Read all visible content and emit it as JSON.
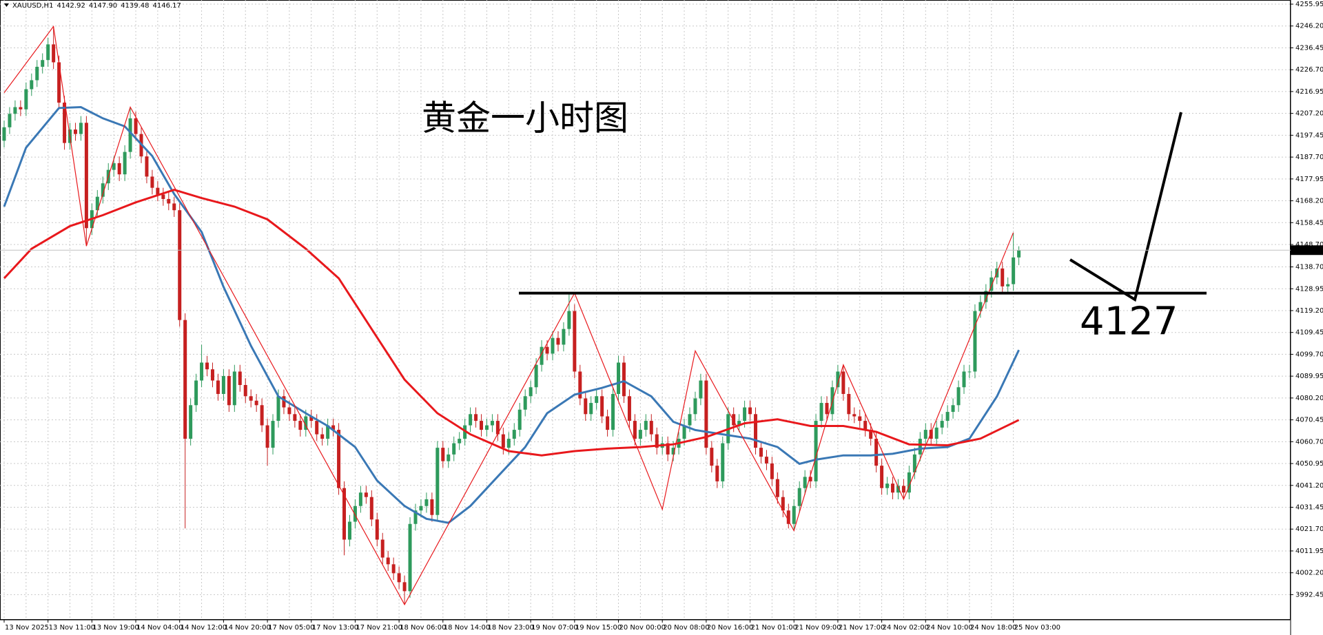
{
  "chart_data": {
    "type": "candlestick",
    "symbol": "XAUUSD,H1",
    "ohlc_labels": [
      "4142.92",
      "4147.90",
      "4139.48",
      "4146.17"
    ],
    "title": "黄金一小时图",
    "categories": [
      "13 Nov 2025",
      null,
      null,
      null,
      null,
      null,
      null,
      null,
      "13 Nov 11:00",
      null,
      null,
      null,
      null,
      null,
      null,
      null,
      "13 Nov 19:00",
      null,
      null,
      null,
      null,
      null,
      null,
      null,
      "14 Nov 04:00",
      null,
      null,
      null,
      null,
      null,
      null,
      null,
      "14 Nov 12:00",
      null,
      null,
      null,
      null,
      null,
      null,
      null,
      "14 Nov 20:00",
      null,
      null,
      null,
      null,
      null,
      null,
      null,
      "17 Nov 05:00",
      null,
      null,
      null,
      null,
      null,
      null,
      null,
      "17 Nov 13:00",
      null,
      null,
      null,
      null,
      null,
      null,
      null,
      "17 Nov 21:00",
      null,
      null,
      null,
      null,
      null,
      null,
      null,
      "18 Nov 06:00",
      null,
      null,
      null,
      null,
      null,
      null,
      null,
      "18 Nov 14:00",
      null,
      null,
      null,
      null,
      null,
      null,
      null,
      "18 Nov 23:00",
      null,
      null,
      null,
      null,
      null,
      null,
      null,
      "19 Nov 07:00",
      null,
      null,
      null,
      null,
      null,
      null,
      null,
      "19 Nov 15:00",
      null,
      null,
      null,
      null,
      null,
      null,
      null,
      "20 Nov 00:00",
      null,
      null,
      null,
      null,
      null,
      null,
      null,
      "20 Nov 08:00",
      null,
      null,
      null,
      null,
      null,
      null,
      null,
      "20 Nov 16:00",
      null,
      null,
      null,
      null,
      null,
      null,
      null,
      "21 Nov 01:00",
      null,
      null,
      null,
      null,
      null,
      null,
      null,
      "21 Nov 09:00",
      null,
      null,
      null,
      null,
      null,
      null,
      null,
      "21 Nov 17:00",
      null,
      null,
      null,
      null,
      null,
      null,
      null,
      "24 Nov 02:00",
      null,
      null,
      null,
      null,
      null,
      null,
      null,
      "24 Nov 10:00",
      null,
      null,
      null,
      null,
      null,
      null,
      null,
      "24 Nov 18:00",
      null,
      null,
      null,
      null,
      null,
      null,
      null,
      "25 Nov 03:00",
      null
    ],
    "open": [
      4195,
      4201,
      4207,
      4210,
      4209,
      4218,
      4222,
      4228,
      4231,
      4238,
      4230,
      4212,
      4194,
      4200,
      4198,
      4203,
      4156,
      4164,
      4170,
      4176,
      4182,
      4185,
      4180,
      4190,
      4205,
      4198,
      4188,
      4179,
      4174,
      4171,
      4169,
      4167,
      4164,
      4115,
      4062,
      4077,
      4088,
      4096,
      4093,
      4088,
      4082,
      4090,
      4077,
      4092,
      4086,
      4081,
      4079,
      4077,
      4068,
      4058,
      4070,
      4081,
      4076,
      4073,
      4070,
      4066,
      4072,
      4070,
      4064,
      4062,
      4068,
      4066,
      4040,
      4017,
      4025,
      4032,
      4038,
      4036,
      4026,
      4017,
      4009,
      4006,
      4002,
      3998,
      3994,
      4024,
      4030,
      4032,
      4035,
      4028,
      4058,
      4052,
      4055,
      4060,
      4062,
      4068,
      4073,
      4070,
      4066,
      4068,
      4070,
      4064,
      4058,
      4062,
      4066,
      4075,
      4081,
      4085,
      4095,
      4103,
      4100,
      4107,
      4104,
      4111,
      4119,
      4092,
      4080,
      4073,
      4078,
      4081,
      4072,
      4066,
      4082,
      4096,
      4081,
      4070,
      4062,
      4066,
      4070,
      4064,
      4058,
      4060,
      4055,
      4058,
      4062,
      4068,
      4073,
      4080,
      4088,
      4058,
      4050,
      4043,
      4060,
      4073,
      4068,
      4070,
      4076,
      4073,
      4058,
      4054,
      4051,
      4044,
      4036,
      4030,
      4024,
      4032,
      4040,
      4045,
      4043,
      4070,
      4078,
      4073,
      4085,
      4092,
      4082,
      4073,
      4072,
      4070,
      4066,
      4062,
      4050,
      4040,
      4042,
      4038,
      4041,
      4038,
      4047,
      4055,
      4062,
      4066,
      4062,
      4067,
      4070,
      4074,
      4077,
      4085,
      4092,
      4092,
      4119,
      4123,
      4128,
      4134,
      4138,
      4130,
      4131,
      4142.92
    ],
    "high": [
      4204,
      4210,
      4213,
      4213,
      4221,
      4225,
      4231,
      4234,
      4241,
      4246,
      4233,
      4215,
      4203,
      4203,
      4206,
      4206,
      4167,
      4173,
      4179,
      4185,
      4188,
      4188,
      4193,
      4210,
      4208,
      4201,
      4191,
      4182,
      4177,
      4174,
      4172,
      4170,
      4167,
      4118,
      4080,
      4091,
      4104,
      4099,
      4096,
      4091,
      4093,
      4093,
      4095,
      4095,
      4089,
      4084,
      4082,
      4080,
      4071,
      4073,
      4084,
      4084,
      4079,
      4076,
      4073,
      4075,
      4075,
      4073,
      4067,
      4071,
      4071,
      4069,
      4043,
      4028,
      4035,
      4041,
      4041,
      4039,
      4029,
      4020,
      4012,
      4009,
      4005,
      4001,
      4027,
      4033,
      4035,
      4038,
      4038,
      4061,
      4061,
      4058,
      4063,
      4065,
      4071,
      4076,
      4076,
      4073,
      4071,
      4073,
      4073,
      4067,
      4065,
      4069,
      4078,
      4084,
      4088,
      4098,
      4106,
      4106,
      4110,
      4110,
      4114,
      4127,
      4122,
      4095,
      4083,
      4081,
      4084,
      4084,
      4075,
      4085,
      4099,
      4099,
      4084,
      4073,
      4069,
      4073,
      4073,
      4067,
      4063,
      4063,
      4061,
      4065,
      4071,
      4076,
      4083,
      4091,
      4091,
      4061,
      4053,
      4063,
      4076,
      4076,
      4073,
      4079,
      4079,
      4076,
      4061,
      4057,
      4054,
      4047,
      4039,
      4033,
      4035,
      4043,
      4048,
      4048,
      4073,
      4081,
      4081,
      4088,
      4095,
      4095,
      4085,
      4076,
      4075,
      4073,
      4069,
      4065,
      4053,
      4045,
      4045,
      4044,
      4044,
      4050,
      4058,
      4065,
      4069,
      4069,
      4070,
      4073,
      4077,
      4080,
      4088,
      4095,
      4095,
      4122,
      4126,
      4131,
      4137,
      4141,
      4141,
      4134,
      4154,
      4147.9
    ],
    "low": [
      4192,
      4198,
      4204,
      4206,
      4206,
      4215,
      4219,
      4225,
      4228,
      4227,
      4209,
      4191,
      4191,
      4195,
      4195,
      4148,
      4153,
      4161,
      4167,
      4173,
      4179,
      4177,
      4177,
      4187,
      4195,
      4185,
      4176,
      4171,
      4168,
      4166,
      4164,
      4161,
      4112,
      4022,
      4059,
      4074,
      4085,
      4090,
      4085,
      4079,
      4079,
      4074,
      4074,
      4083,
      4078,
      4076,
      4074,
      4065,
      4050,
      4055,
      4067,
      4073,
      4070,
      4067,
      4063,
      4063,
      4067,
      4061,
      4059,
      4059,
      4063,
      4037,
      4010,
      4014,
      4022,
      4029,
      4033,
      4023,
      4014,
      4006,
      4003,
      3999,
      3995,
      3988,
      3991,
      4021,
      4027,
      4029,
      4025,
      4025,
      4049,
      4049,
      4052,
      4057,
      4059,
      4065,
      4067,
      4063,
      4063,
      4065,
      4061,
      4055,
      4055,
      4059,
      4063,
      4072,
      4078,
      4082,
      4092,
      4097,
      4097,
      4101,
      4101,
      4108,
      4089,
      4077,
      4070,
      4070,
      4075,
      4069,
      4063,
      4063,
      4079,
      4078,
      4067,
      4059,
      4059,
      4063,
      4061,
      4055,
      4055,
      4052,
      4052,
      4055,
      4059,
      4065,
      4070,
      4077,
      4055,
      4047,
      4040,
      4040,
      4057,
      4065,
      4065,
      4067,
      4070,
      4055,
      4051,
      4048,
      4041,
      4033,
      4027,
      4022,
      4021,
      4029,
      4037,
      4040,
      4040,
      4067,
      4070,
      4070,
      4082,
      4079,
      4070,
      4069,
      4067,
      4063,
      4059,
      4047,
      4037,
      4037,
      4035,
      4035,
      4035,
      4035,
      4044,
      4052,
      4059,
      4059,
      4059,
      4064,
      4067,
      4071,
      4074,
      4082,
      4089,
      4089,
      4116,
      4120,
      4125,
      4131,
      4127,
      4127,
      4128,
      4139.48
    ],
    "close": [
      4201,
      4207,
      4210,
      4209,
      4218,
      4222,
      4228,
      4231,
      4238,
      4230,
      4212,
      4194,
      4200,
      4198,
      4203,
      4156,
      4164,
      4170,
      4176,
      4182,
      4185,
      4180,
      4190,
      4205,
      4198,
      4188,
      4179,
      4174,
      4171,
      4169,
      4167,
      4164,
      4115,
      4062,
      4077,
      4088,
      4096,
      4093,
      4088,
      4082,
      4090,
      4077,
      4092,
      4086,
      4081,
      4079,
      4077,
      4068,
      4058,
      4070,
      4081,
      4076,
      4073,
      4070,
      4066,
      4072,
      4070,
      4064,
      4062,
      4068,
      4066,
      4040,
      4017,
      4025,
      4032,
      4038,
      4036,
      4026,
      4017,
      4009,
      4006,
      4002,
      3998,
      3994,
      4024,
      4030,
      4032,
      4035,
      4028,
      4058,
      4052,
      4055,
      4060,
      4062,
      4068,
      4073,
      4070,
      4066,
      4068,
      4070,
      4064,
      4058,
      4062,
      4066,
      4075,
      4081,
      4085,
      4095,
      4103,
      4100,
      4107,
      4104,
      4111,
      4119,
      4092,
      4080,
      4073,
      4078,
      4081,
      4072,
      4066,
      4082,
      4096,
      4081,
      4070,
      4062,
      4066,
      4070,
      4064,
      4058,
      4060,
      4055,
      4058,
      4062,
      4068,
      4073,
      4080,
      4088,
      4058,
      4050,
      4043,
      4060,
      4073,
      4068,
      4070,
      4076,
      4073,
      4058,
      4054,
      4051,
      4044,
      4036,
      4030,
      4024,
      4032,
      4040,
      4045,
      4043,
      4070,
      4078,
      4073,
      4085,
      4092,
      4082,
      4073,
      4072,
      4070,
      4066,
      4062,
      4050,
      4040,
      4042,
      4038,
      4041,
      4038,
      4047,
      4055,
      4062,
      4066,
      4062,
      4067,
      4070,
      4074,
      4077,
      4085,
      4092,
      4092,
      4119,
      4123,
      4128,
      4134,
      4138,
      4130,
      4131,
      4142.92,
      4146.17
    ],
    "up_color": "#2e9a5c",
    "down_color": "#c62020",
    "lines": [
      {
        "color": "#3a78b5",
        "x": [
          0,
          4,
          10,
          14,
          18,
          22,
          27,
          31,
          36,
          40,
          45,
          50,
          55,
          59,
          64,
          68,
          73,
          77,
          81,
          85,
          90,
          95,
          99,
          104,
          109,
          113,
          118,
          122,
          126,
          131,
          136,
          141,
          145,
          148,
          153,
          158,
          162,
          167,
          172,
          176,
          181,
          185
        ],
        "values": [
          4165.6,
          4191.9,
          4209.6,
          4210,
          4205,
          4201.4,
          4188.2,
          4171.2,
          4154.3,
          4129.8,
          4103.5,
          4080.9,
          4073.4,
          4067.7,
          4058.3,
          4043.3,
          4032,
          4026.3,
          4024.5,
          4032,
          4045.2,
          4058.3,
          4073.4,
          4081.7,
          4084.7,
          4087.7,
          4080.9,
          4069.6,
          4065.9,
          4064,
          4062.1,
          4058.3,
          4050.8,
          4052.7,
          4054.6,
          4054.6,
          4055.3,
          4057.6,
          4058.3,
          4062.1,
          4080.9,
          4101.6
        ]
      },
      {
        "color": "#e8181c",
        "x": [
          0,
          5,
          12,
          18,
          24,
          31,
          36,
          42,
          48,
          55,
          61,
          67,
          73,
          79,
          85,
          92,
          98,
          104,
          110,
          116,
          122,
          128,
          135,
          141,
          147,
          153,
          159,
          165,
          172,
          178,
          185
        ],
        "values": [
          4133.6,
          4146.8,
          4156.9,
          4161.8,
          4167.5,
          4173.1,
          4169.4,
          4165.6,
          4159.9,
          4146.8,
          4133.6,
          4111,
          4088.4,
          4073.4,
          4064,
          4056.5,
          4054.6,
          4056.5,
          4057.6,
          4058.3,
          4059.5,
          4062.8,
          4068.9,
          4070.7,
          4067.7,
          4067.7,
          4065.1,
          4059.5,
          4059.1,
          4062.1,
          4070.4
        ]
      },
      {
        "color": "#e8181c",
        "x": [
          0,
          9,
          15,
          23,
          73,
          104,
          120,
          126,
          144,
          153,
          164,
          184
        ],
        "values": [
          4216.4,
          4246,
          4148,
          4210,
          3988,
          4127,
          4030.5,
          4101.2,
          4021,
          4095,
          4035,
          4154
        ]
      }
    ],
    "level_line": {
      "value": 4127,
      "color": "#000000"
    },
    "ylim": [
      3981.2,
      4257.8
    ],
    "yticks": [
      4255.95,
      {
        "value": 4246.2,
        "label": "4246.20"
      },
      4236.45,
      {
        "value": 4226.7,
        "label": "4226.70"
      },
      4216.95,
      {
        "value": 4207.2,
        "label": "4207.20"
      },
      4197.45,
      {
        "value": 4187.7,
        "label": "4187.70"
      },
      4177.95,
      {
        "value": 4168.2,
        "label": "4168.20"
      },
      4158.45,
      {
        "value": 4148.7,
        "label": "4148.70"
      },
      {
        "value": 4138.7,
        "label": "4138.70"
      },
      4128.95,
      {
        "value": 4119.2,
        "label": "4119.20"
      },
      4109.45,
      {
        "value": 4099.7,
        "label": "4099.70"
      },
      4089.95,
      {
        "value": 4080.2,
        "label": "4080.20"
      },
      4070.45,
      {
        "value": 4060.7,
        "label": "4060.70"
      },
      4050.95,
      {
        "value": 4041.2,
        "label": "4041.20"
      },
      4031.45,
      {
        "value": 4021.7,
        "label": "4021.70"
      },
      4011.95,
      {
        "value": 4002.2,
        "label": "4002.20"
      },
      3992.45
    ],
    "grid": true
  }
}
